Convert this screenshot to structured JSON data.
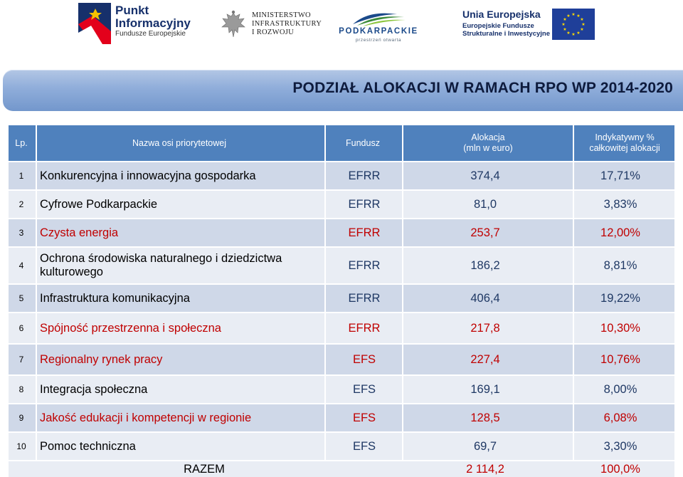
{
  "colors": {
    "accent_red": "#c00000",
    "header_blue": "#4f81bd",
    "banner_blue": "#8fadda",
    "text_dark": "#000000"
  },
  "logos": {
    "punkt": {
      "line1": "Punkt",
      "line2": "Informacyjny",
      "line3": "Fundusze Europejskie"
    },
    "ministerstwo": {
      "line1": "MINISTERSTWO",
      "line2": "INFRASTRUKTURY",
      "line3": "I ROZWOJU"
    },
    "podkarpackie": {
      "name": "PODKARPACKIE",
      "tagline": "przestrzeń otwarta"
    },
    "unia": {
      "line1": "Unia Europejska",
      "line2": "Europejskie Fundusze",
      "line3": "Strukturalne i Inwestycyjne"
    }
  },
  "title": "PODZIAŁ ALOKACJI W RAMACH RPO WP 2014-2020",
  "table": {
    "headers": {
      "lp": "Lp.",
      "name": "Nazwa osi priorytetowej",
      "fund": "Fundusz",
      "alloc_line1": "Alokacja",
      "alloc_line2": "(mln w euro)",
      "pct_line1": "Indykatywny %",
      "pct_line2": "całkowitej alokacji"
    },
    "rows": [
      {
        "lp": "1",
        "name": "Konkurencyjna i innowacyjna gospodarka",
        "fund": "EFRR",
        "value": "374,4",
        "pct": "17,71%",
        "red": false
      },
      {
        "lp": "2",
        "name": "Cyfrowe Podkarpackie",
        "fund": "EFRR",
        "value": "81,0",
        "pct": "3,83%",
        "red": false
      },
      {
        "lp": "3",
        "name": "Czysta energia",
        "fund": "EFRR",
        "value": "253,7",
        "pct": "12,00%",
        "red": true
      },
      {
        "lp": "4",
        "name": "Ochrona środowiska naturalnego i dziedzictwa kulturowego",
        "fund": "EFRR",
        "value": "186,2",
        "pct": "8,81%",
        "red": false
      },
      {
        "lp": "5",
        "name": "Infrastruktura komunikacyjna",
        "fund": "EFRR",
        "value": "406,4",
        "pct": "19,22%",
        "red": false
      },
      {
        "lp": "6",
        "name": "Spójność przestrzenna i społeczna",
        "fund": "EFRR",
        "value": "217,8",
        "pct": "10,30%",
        "red": true
      },
      {
        "lp": "7",
        "name": "Regionalny rynek pracy",
        "fund": "EFS",
        "value": "227,4",
        "pct": "10,76%",
        "red": true
      },
      {
        "lp": "8",
        "name": "Integracja społeczna",
        "fund": "EFS",
        "value": "169,1",
        "pct": "8,00%",
        "red": false
      },
      {
        "lp": "9",
        "name": "Jakość edukacji i kompetencji w regionie",
        "fund": "EFS",
        "value": "128,5",
        "pct": "6,08%",
        "red": true
      },
      {
        "lp": "10",
        "name": "Pomoc techniczna",
        "fund": "EFS",
        "value": "69,7",
        "pct": "3,30%",
        "red": false
      }
    ],
    "total": {
      "label": "RAZEM",
      "value": "2 114,2",
      "pct": "100,0%"
    }
  }
}
